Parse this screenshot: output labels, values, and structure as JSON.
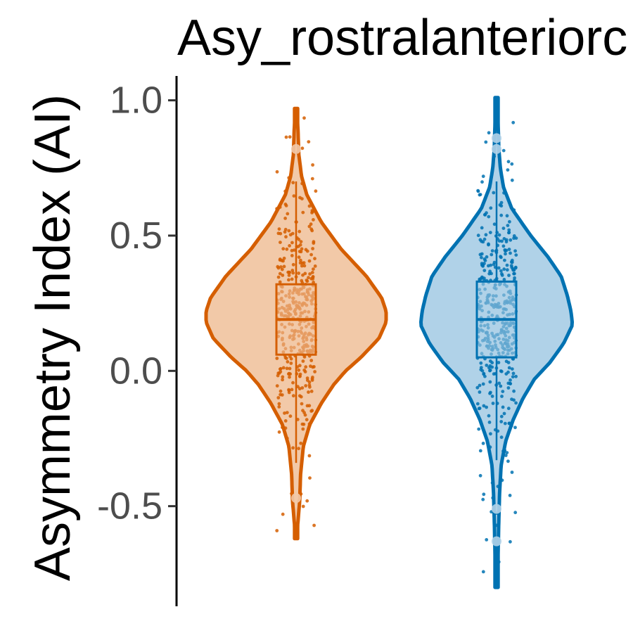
{
  "chart_data": {
    "type": "violin",
    "title": "Asy_rostralanteriorc",
    "ylabel": "Asymmetry Index (AI)",
    "xlabel": "",
    "ylim": [
      -0.87,
      1.09
    ],
    "yticks": [
      1.0,
      0.5,
      0.0,
      -0.5
    ],
    "ytick_labels": [
      "1.0",
      "0.5",
      "0.0",
      "-0.5"
    ],
    "grid": false,
    "legend": "none",
    "series": [
      {
        "color": "#D55E00",
        "fill": "#F2C9A8",
        "point_color": "#D55E00",
        "density_profile": [
          [
            0.97,
            0.0
          ],
          [
            0.9,
            0.02
          ],
          [
            0.8,
            0.03
          ],
          [
            0.72,
            0.06
          ],
          [
            0.65,
            0.12
          ],
          [
            0.55,
            0.28
          ],
          [
            0.45,
            0.5
          ],
          [
            0.35,
            0.78
          ],
          [
            0.27,
            0.95
          ],
          [
            0.22,
            1.0
          ],
          [
            0.18,
            1.0
          ],
          [
            0.12,
            0.92
          ],
          [
            0.05,
            0.72
          ],
          [
            0.0,
            0.55
          ],
          [
            -0.05,
            0.42
          ],
          [
            -0.12,
            0.28
          ],
          [
            -0.2,
            0.15
          ],
          [
            -0.28,
            0.08
          ],
          [
            -0.38,
            0.05
          ],
          [
            -0.48,
            0.04
          ],
          [
            -0.56,
            0.02
          ],
          [
            -0.62,
            0.0
          ]
        ],
        "box": {
          "q1": 0.06,
          "median": 0.19,
          "q3": 0.32,
          "whisker_low": -0.34,
          "whisker_high": 0.7
        },
        "outliers": [
          0.82,
          -0.47
        ],
        "n_points": 420
      },
      {
        "color": "#0072B2",
        "fill": "#B0D2E8",
        "point_color": "#0072B2",
        "density_profile": [
          [
            1.01,
            0.0
          ],
          [
            0.92,
            0.02
          ],
          [
            0.82,
            0.03
          ],
          [
            0.75,
            0.05
          ],
          [
            0.68,
            0.09
          ],
          [
            0.6,
            0.2
          ],
          [
            0.5,
            0.45
          ],
          [
            0.42,
            0.68
          ],
          [
            0.35,
            0.85
          ],
          [
            0.28,
            0.93
          ],
          [
            0.22,
            0.98
          ],
          [
            0.17,
            1.0
          ],
          [
            0.1,
            0.88
          ],
          [
            0.03,
            0.7
          ],
          [
            -0.03,
            0.5
          ],
          [
            -0.1,
            0.35
          ],
          [
            -0.18,
            0.22
          ],
          [
            -0.26,
            0.12
          ],
          [
            -0.35,
            0.06
          ],
          [
            -0.45,
            0.04
          ],
          [
            -0.55,
            0.03
          ],
          [
            -0.68,
            0.02
          ],
          [
            -0.8,
            0.0
          ]
        ],
        "box": {
          "q1": 0.05,
          "median": 0.19,
          "q3": 0.33,
          "whisker_low": -0.33,
          "whisker_high": 0.7
        },
        "outliers": [
          0.86,
          0.82,
          -0.51,
          -0.63
        ],
        "n_points": 430
      }
    ]
  }
}
